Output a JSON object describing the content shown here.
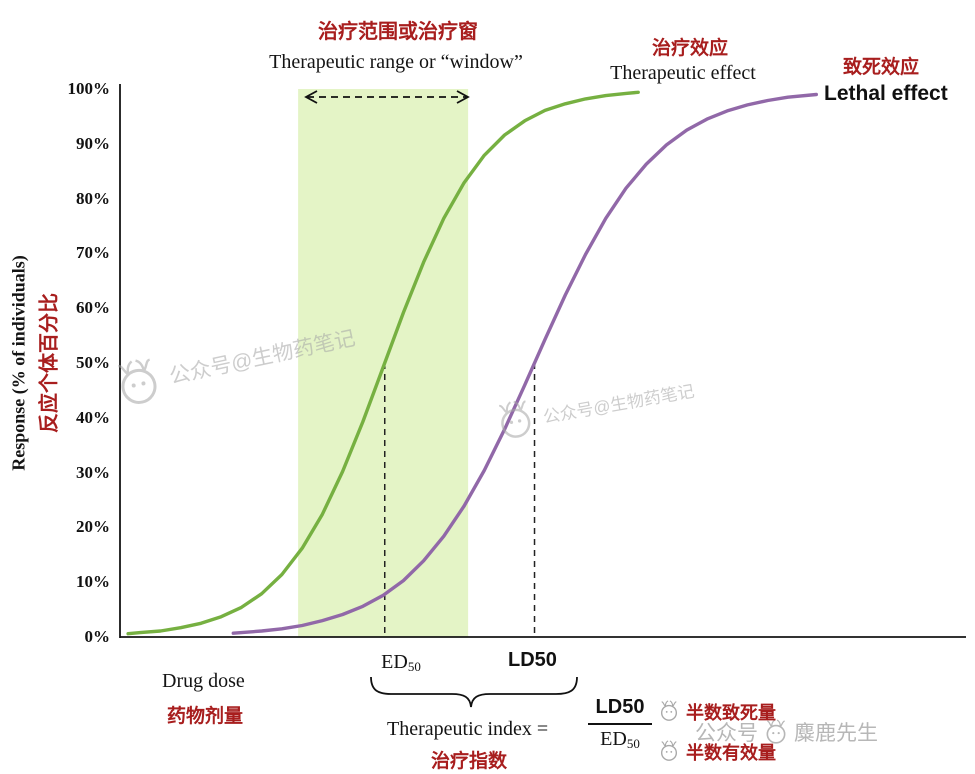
{
  "accent": {
    "red": "#a81e1e",
    "curve_green": "#76b041",
    "curve_purple": "#9168a8",
    "band_fill": "#e4f4c6",
    "axis_black": "#141414",
    "watermark_gray": "#a6a6a6"
  },
  "header": {
    "window_label_zh": "治疗范围或治疗窗",
    "window_label_en": "Therapeutic range or “window”",
    "therapeutic_label_zh": "治疗效应",
    "therapeutic_label_en": "Therapeutic effect",
    "lethal_label_zh": "致死效应",
    "lethal_label_en": "Lethal effect"
  },
  "axes": {
    "y_title_en": "Response (% of individuals)",
    "y_title_zh": "反应个体百分比",
    "x_title_en": "Drug dose",
    "x_title_zh": "药物剂量",
    "y_ticks": [
      "100%",
      "90%",
      "80%",
      "70%",
      "60%",
      "50%",
      "40%",
      "30%",
      "20%",
      "10%",
      "0%"
    ]
  },
  "markers": {
    "ed50_label": "ED",
    "ed50_sub": "50",
    "ld50_label": "LD50"
  },
  "formula": {
    "text_en": "Therapeutic index =",
    "text_zh": "治疗指数",
    "numerator": "LD50",
    "denominator_main": "ED",
    "denominator_sub": "50",
    "numerator_note_zh": "半数致死量",
    "denominator_note_zh": "半数有效量"
  },
  "watermarks": {
    "center1": "公众号@生物药笔记",
    "center2": "公众号@生物药笔记",
    "bottom_prefix": "公众号",
    "bottom_name": "麋鹿先生"
  },
  "chart_data": {
    "type": "line",
    "xlabel": "Drug dose",
    "ylabel": "Response (% of individuals)",
    "xlim": [
      0,
      104
    ],
    "ylim": [
      0,
      100
    ],
    "x_ticks": [],
    "y_tick_values": [
      0,
      10,
      20,
      30,
      40,
      50,
      60,
      70,
      80,
      90,
      100
    ],
    "grid": false,
    "legend_position": "labels-at-curve-ends",
    "therapeutic_window_x": [
      22,
      43
    ],
    "ed50_x": 32.7,
    "ld50_x": 51.2,
    "series": [
      {
        "name": "Therapeutic effect",
        "name_zh": "治疗效应",
        "color": "#76b041",
        "x": [
          1,
          2.5,
          5,
          7.5,
          10,
          12.5,
          15,
          17.5,
          20,
          22.5,
          25,
          27.5,
          30,
          32.5,
          35,
          37.5,
          40,
          42.5,
          45,
          47.5,
          50,
          52.5,
          55,
          57.5,
          60,
          62.5,
          64
        ],
        "y": [
          0.6,
          0.8,
          1.1,
          1.7,
          2.5,
          3.7,
          5.4,
          7.9,
          11.4,
          16.2,
          22.4,
          30.2,
          39.3,
          49.2,
          59.2,
          68.4,
          76.4,
          82.9,
          87.9,
          91.6,
          94.2,
          96.1,
          97.3,
          98.2,
          98.8,
          99.2,
          99.4
        ]
      },
      {
        "name": "Lethal effect",
        "name_zh": "致死效应",
        "color": "#9168a8",
        "x": [
          14,
          17.5,
          20,
          22.5,
          25,
          27.5,
          30,
          32.5,
          35,
          37.5,
          40,
          42.5,
          45,
          47.5,
          50,
          52.5,
          55,
          57.5,
          60,
          62.5,
          65,
          67.5,
          70,
          72.5,
          75,
          77.5,
          80,
          82.5,
          86
        ],
        "y": [
          0.7,
          1.1,
          1.5,
          2.1,
          3.0,
          4.1,
          5.6,
          7.6,
          10.3,
          13.9,
          18.4,
          23.9,
          30.4,
          37.9,
          46.0,
          54.3,
          62.4,
          69.8,
          76.4,
          81.9,
          86.3,
          89.8,
          92.5,
          94.5,
          96.0,
          97.1,
          97.9,
          98.5,
          99.0
        ]
      }
    ]
  }
}
